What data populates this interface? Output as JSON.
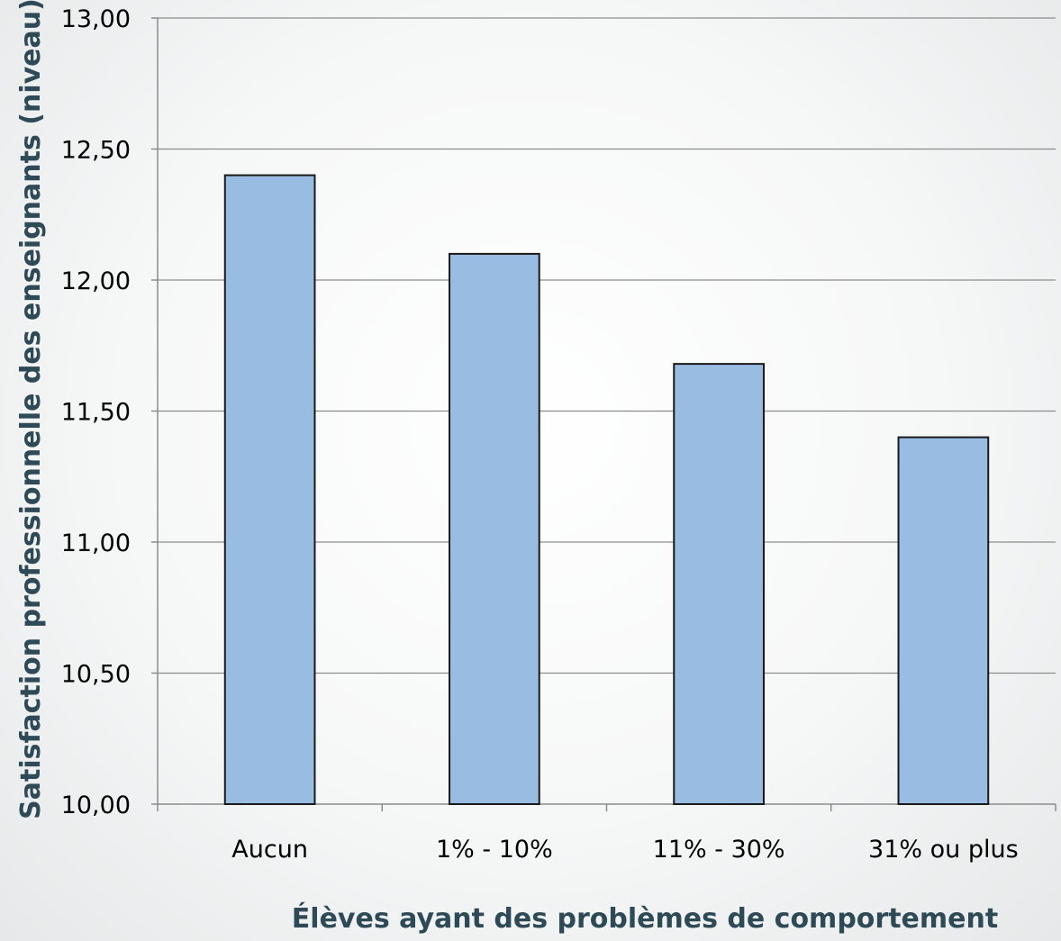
{
  "chart_data": {
    "type": "bar",
    "categories": [
      "Aucun",
      "1% - 10%",
      "11% - 30%",
      "31% ou plus"
    ],
    "values": [
      12.4,
      12.1,
      11.68,
      11.4
    ],
    "xlabel": "Élèves ayant des problèmes de comportement",
    "ylabel": "Satisfaction professionnelle des enseignants (niveau)",
    "ylim": [
      10.0,
      13.0
    ],
    "yticks": [
      "10,00",
      "10,50",
      "11,00",
      "11,50",
      "12,00",
      "12,50",
      "13,00"
    ],
    "grid": true,
    "legend": "none",
    "colors": {
      "bar_fill": "#99bce3",
      "bar_stroke": "#1a1a1a",
      "grid": "#8c8c8c",
      "axis_title": "#2e4a57"
    }
  }
}
